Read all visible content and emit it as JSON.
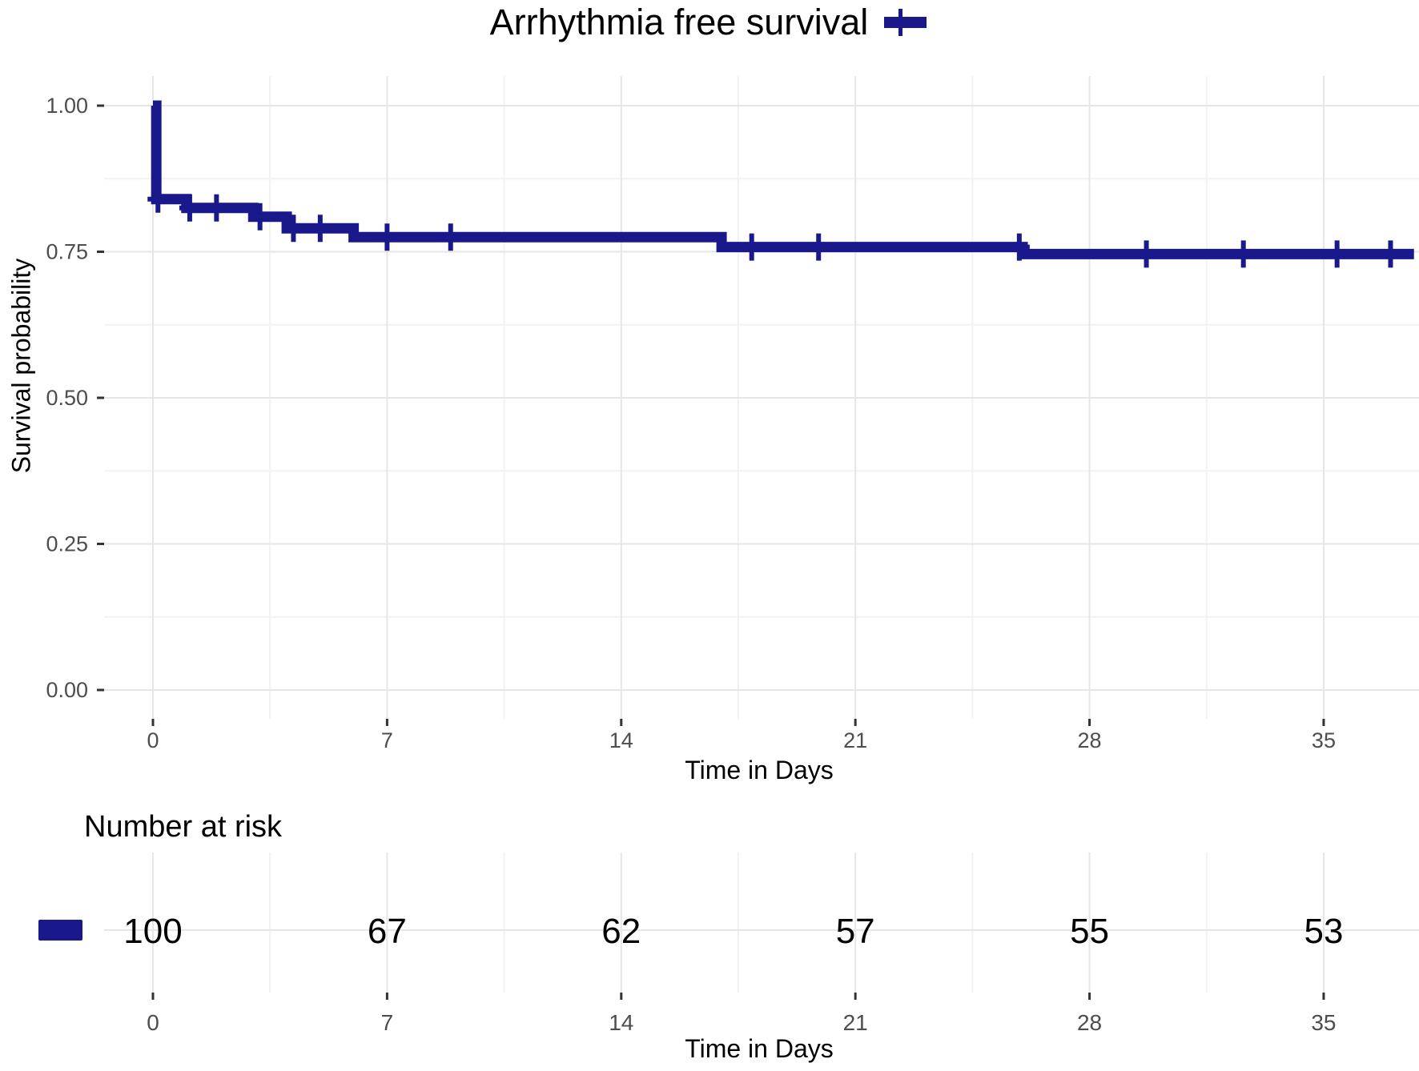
{
  "colors": {
    "curve": "#19198c",
    "grid_major": "#e6e6e6",
    "grid_minor": "#f2f2f2",
    "tick_mark": "#333333",
    "axis_text": "#4d4d4d",
    "text": "#000000",
    "background": "#ffffff"
  },
  "chart_data": {
    "type": "line",
    "subtype": "kaplan-meier-step-function",
    "title": "Arrhythmia free survival",
    "xlabel": "Time in Days",
    "ylabel": "Survival probability",
    "xlim": [
      -1.5,
      38.5
    ],
    "ylim": [
      0,
      1.0
    ],
    "legend_position": "top-right-of-title",
    "grid": true,
    "x_ticks": [
      0,
      7,
      14,
      21,
      28,
      35
    ],
    "y_ticks": [
      {
        "v": 1.0,
        "label": "1.00"
      },
      {
        "v": 0.75,
        "label": "0.75"
      },
      {
        "v": 0.5,
        "label": "0.50"
      },
      {
        "v": 0.25,
        "label": "0.25"
      },
      {
        "v": 0.0,
        "label": "0.00"
      }
    ],
    "series": [
      {
        "name": "Arrhythmia free survival",
        "steps": [
          [
            0,
            1.0
          ],
          [
            0.1,
            0.84
          ],
          [
            1,
            0.825
          ],
          [
            3,
            0.81
          ],
          [
            4,
            0.79
          ],
          [
            6,
            0.775
          ],
          [
            17,
            0.758
          ],
          [
            26,
            0.746
          ]
        ],
        "end_time": 37.7,
        "censor_times": [
          0.15,
          1.1,
          1.9,
          3.2,
          4.2,
          5,
          7,
          8.9,
          17.9,
          19.9,
          25.9,
          29.7,
          32.6,
          35.4,
          37
        ]
      }
    ]
  },
  "risk_table": {
    "label": "Number at risk",
    "xlabel": "Time in Days",
    "times": [
      0,
      7,
      14,
      21,
      28,
      35
    ],
    "counts": [
      100,
      67,
      62,
      57,
      55,
      53
    ]
  }
}
